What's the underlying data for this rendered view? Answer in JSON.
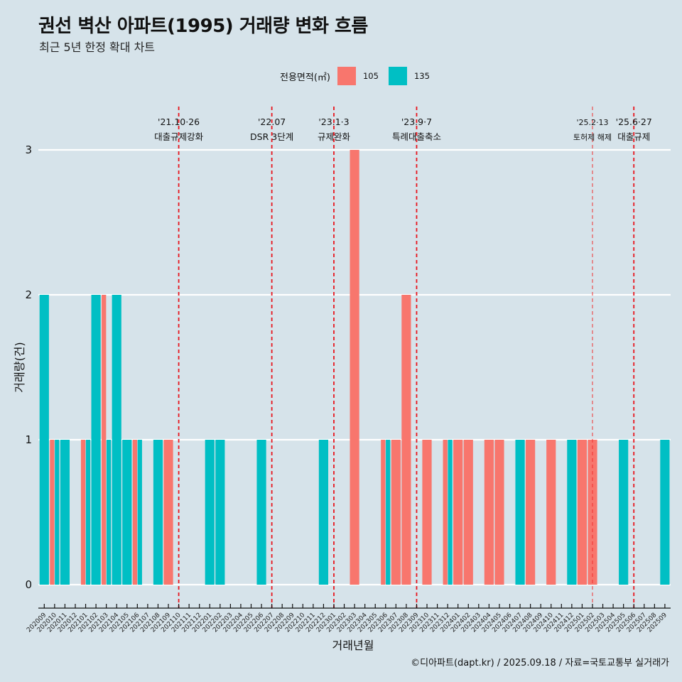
{
  "header": {
    "title": "권선 벽산 아파트(1995) 거래량 변화 흐름",
    "subtitle": "최근 5년 한정 확대 차트"
  },
  "legend": {
    "title": "전용면적(㎡)",
    "items": [
      {
        "label": "105",
        "color": "#F8766D"
      },
      {
        "label": "135",
        "color": "#00BFC4"
      }
    ]
  },
  "caption": "©디아파트(dapt.kr) / 2025.09.18 / 자료=국토교통부 실거래가",
  "chart_data": {
    "type": "bar",
    "title": "권선 벽산 아파트(1995) 거래량 변화 흐름",
    "subtitle": "최근 5년 한정 확대 차트",
    "xlabel": "거래년월",
    "ylabel": "거래량(건)",
    "ylim": [
      0,
      3
    ],
    "yticks": [
      0,
      1,
      2,
      3
    ],
    "grid": "horizontal",
    "legend_position": "top",
    "bar_mode": "dodge",
    "categories": [
      "202009",
      "202010",
      "202011",
      "202012",
      "202101",
      "202102",
      "202103",
      "202104",
      "202105",
      "202106",
      "202107",
      "202108",
      "202109",
      "202110",
      "202111",
      "202112",
      "202201",
      "202202",
      "202203",
      "202204",
      "202205",
      "202206",
      "202207",
      "202208",
      "202209",
      "202210",
      "202211",
      "202212",
      "202301",
      "202302",
      "202303",
      "202304",
      "202305",
      "202306",
      "202307",
      "202308",
      "202309",
      "202310",
      "202311",
      "202312",
      "202401",
      "202402",
      "202403",
      "202404",
      "202405",
      "202406",
      "202407",
      "202408",
      "202409",
      "202410",
      "202411",
      "202412",
      "202501",
      "202502",
      "202503",
      "202504",
      "202505",
      "202506",
      "202507",
      "202508",
      "202509"
    ],
    "series": [
      {
        "name": "105",
        "color": "#F8766D",
        "values": [
          0,
          1,
          0,
          0,
          1,
          0,
          2,
          0,
          0,
          1,
          0,
          0,
          1,
          0,
          0,
          0,
          0,
          0,
          0,
          0,
          0,
          0,
          0,
          0,
          0,
          0,
          0,
          0,
          0,
          0,
          3,
          0,
          0,
          1,
          1,
          2,
          0,
          1,
          0,
          1,
          1,
          1,
          0,
          1,
          1,
          0,
          0,
          1,
          0,
          1,
          0,
          0,
          1,
          1,
          0,
          0,
          0,
          0,
          0,
          0,
          0
        ]
      },
      {
        "name": "135",
        "color": "#00BFC4",
        "values": [
          2,
          1,
          1,
          0,
          1,
          2,
          1,
          2,
          1,
          1,
          0,
          1,
          0,
          0,
          0,
          0,
          1,
          1,
          0,
          0,
          0,
          1,
          0,
          0,
          0,
          0,
          0,
          1,
          0,
          0,
          0,
          0,
          0,
          1,
          0,
          0,
          0,
          0,
          0,
          1,
          0,
          0,
          0,
          0,
          0,
          0,
          1,
          0,
          0,
          0,
          0,
          1,
          0,
          0,
          0,
          0,
          1,
          0,
          0,
          0,
          1
        ]
      }
    ],
    "annotations": [
      {
        "x": "202110",
        "date": "'21.10·26",
        "label": "대출규제강화",
        "style": "dashed-bold"
      },
      {
        "x": "202207",
        "date": "'22.07",
        "label": "DSR 3단계",
        "style": "dashed-bold"
      },
      {
        "x": "202301",
        "date": "'23.1·3",
        "label": "규제완화",
        "style": "dashed-bold"
      },
      {
        "x": "202309",
        "date": "'23.9·7",
        "label": "특례대출축소",
        "style": "dashed-bold"
      },
      {
        "x": "202502",
        "date": "'25.2·13",
        "label": "토허제 해제",
        "style": "dashed-thin"
      },
      {
        "x": "202506",
        "date": "'25.6·27",
        "label": "대출규제",
        "style": "dashed-bold"
      }
    ]
  }
}
